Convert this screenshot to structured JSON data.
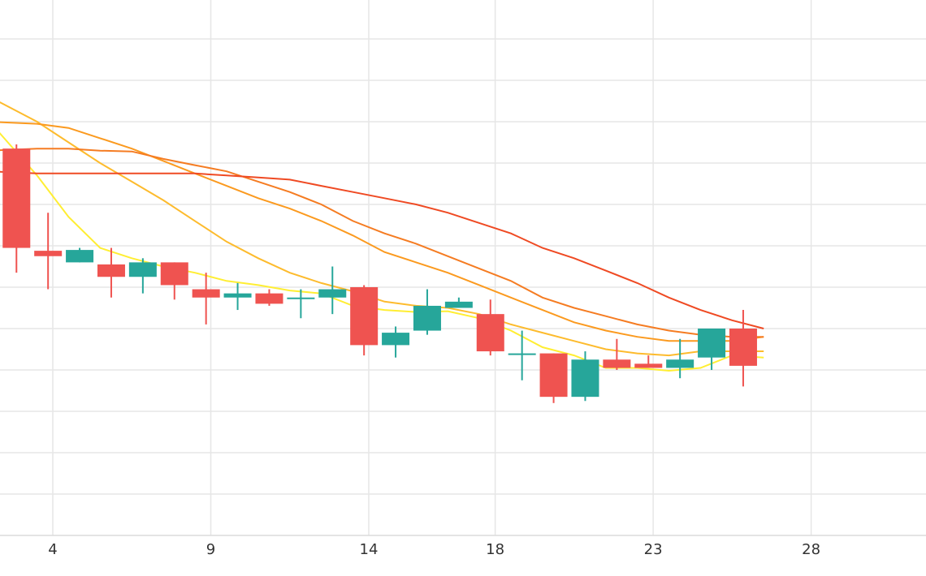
{
  "chart_data": {
    "type": "candlestick",
    "title": "",
    "xlabel": "",
    "ylabel": "",
    "x_ticks": [
      4,
      9,
      14,
      18,
      23,
      28
    ],
    "y_lim": [
      0,
      13
    ],
    "grid": true,
    "colors": {
      "up": "#26a69a",
      "down": "#ef5350"
    },
    "candles": [
      {
        "day": 2.85,
        "open": 9.35,
        "high": 9.45,
        "low": 6.35,
        "close": 6.95
      },
      {
        "day": 3.85,
        "open": 6.88,
        "high": 7.8,
        "low": 5.95,
        "close": 6.75
      },
      {
        "day": 4.85,
        "open": 6.6,
        "high": 6.95,
        "low": 6.6,
        "close": 6.9
      },
      {
        "day": 5.85,
        "open": 6.55,
        "high": 6.95,
        "low": 5.75,
        "close": 6.25
      },
      {
        "day": 6.85,
        "open": 6.25,
        "high": 6.7,
        "low": 5.85,
        "close": 6.6
      },
      {
        "day": 7.85,
        "open": 6.6,
        "high": 6.6,
        "low": 5.7,
        "close": 6.05
      },
      {
        "day": 8.85,
        "open": 5.95,
        "high": 6.35,
        "low": 5.1,
        "close": 5.75
      },
      {
        "day": 9.85,
        "open": 5.75,
        "high": 6.1,
        "low": 5.45,
        "close": 5.85
      },
      {
        "day": 10.85,
        "open": 5.85,
        "high": 5.95,
        "low": 5.55,
        "close": 5.6
      },
      {
        "day": 11.85,
        "open": 5.75,
        "high": 5.95,
        "low": 5.25,
        "close": 5.75
      },
      {
        "day": 12.85,
        "open": 5.75,
        "high": 6.5,
        "low": 5.35,
        "close": 5.95
      },
      {
        "day": 13.85,
        "open": 6.0,
        "high": 6.05,
        "low": 4.35,
        "close": 4.6
      },
      {
        "day": 14.85,
        "open": 4.6,
        "high": 5.05,
        "low": 4.3,
        "close": 4.9
      },
      {
        "day": 15.85,
        "open": 4.95,
        "high": 5.95,
        "low": 4.85,
        "close": 5.55
      },
      {
        "day": 16.85,
        "open": 5.5,
        "high": 5.75,
        "low": 5.5,
        "close": 5.65
      },
      {
        "day": 17.85,
        "open": 5.35,
        "high": 5.7,
        "low": 4.35,
        "close": 4.45
      },
      {
        "day": 18.85,
        "open": 4.4,
        "high": 4.95,
        "low": 3.75,
        "close": 4.4
      },
      {
        "day": 19.85,
        "open": 4.4,
        "high": 4.4,
        "low": 3.2,
        "close": 3.35
      },
      {
        "day": 20.85,
        "open": 3.35,
        "high": 4.45,
        "low": 3.25,
        "close": 4.25
      },
      {
        "day": 21.85,
        "open": 4.25,
        "high": 4.75,
        "low": 4.0,
        "close": 4.05
      },
      {
        "day": 22.85,
        "open": 4.15,
        "high": 4.35,
        "low": 4.05,
        "close": 4.05
      },
      {
        "day": 23.85,
        "open": 4.05,
        "high": 4.75,
        "low": 3.8,
        "close": 4.25
      },
      {
        "day": 24.85,
        "open": 4.3,
        "high": 5.0,
        "low": 4.0,
        "close": 5.0
      },
      {
        "day": 25.85,
        "open": 5.0,
        "high": 5.45,
        "low": 3.6,
        "close": 4.1
      }
    ],
    "series": [
      {
        "color": "#ffee33",
        "points": [
          [
            2.0,
            10.0
          ],
          [
            3.5,
            8.7
          ],
          [
            4.5,
            7.7
          ],
          [
            5.5,
            6.95
          ],
          [
            6.5,
            6.7
          ],
          [
            7.5,
            6.5
          ],
          [
            8.5,
            6.35
          ],
          [
            9.5,
            6.15
          ],
          [
            10.5,
            6.05
          ],
          [
            11.5,
            5.92
          ],
          [
            12.5,
            5.85
          ],
          [
            13.5,
            5.55
          ],
          [
            14.5,
            5.45
          ],
          [
            15.5,
            5.4
          ],
          [
            16.5,
            5.42
          ],
          [
            17.5,
            5.25
          ],
          [
            18.5,
            4.95
          ],
          [
            19.5,
            4.55
          ],
          [
            20.5,
            4.35
          ],
          [
            21.5,
            4.05
          ],
          [
            22.5,
            4.05
          ],
          [
            23.5,
            3.98
          ],
          [
            24.5,
            4.05
          ],
          [
            25.5,
            4.35
          ],
          [
            26.5,
            4.3
          ]
        ]
      },
      {
        "color": "#fdbb2d",
        "points": [
          [
            2.0,
            10.6
          ],
          [
            3.5,
            10.0
          ],
          [
            4.5,
            9.5
          ],
          [
            5.5,
            9.0
          ],
          [
            6.5,
            8.55
          ],
          [
            7.5,
            8.1
          ],
          [
            8.5,
            7.6
          ],
          [
            9.5,
            7.1
          ],
          [
            10.5,
            6.7
          ],
          [
            11.5,
            6.35
          ],
          [
            12.5,
            6.1
          ],
          [
            13.5,
            5.9
          ],
          [
            14.5,
            5.65
          ],
          [
            15.5,
            5.55
          ],
          [
            16.5,
            5.5
          ],
          [
            17.5,
            5.35
          ],
          [
            18.5,
            5.1
          ],
          [
            19.5,
            4.9
          ],
          [
            20.5,
            4.7
          ],
          [
            21.5,
            4.5
          ],
          [
            22.5,
            4.4
          ],
          [
            23.5,
            4.35
          ],
          [
            24.5,
            4.45
          ],
          [
            25.5,
            4.45
          ],
          [
            26.5,
            4.45
          ]
        ]
      },
      {
        "color": "#fb9a1f",
        "points": [
          [
            2.0,
            10.0
          ],
          [
            3.5,
            9.95
          ],
          [
            4.5,
            9.85
          ],
          [
            5.5,
            9.6
          ],
          [
            6.5,
            9.35
          ],
          [
            7.5,
            9.05
          ],
          [
            8.5,
            8.75
          ],
          [
            9.5,
            8.45
          ],
          [
            10.5,
            8.15
          ],
          [
            11.5,
            7.9
          ],
          [
            12.5,
            7.6
          ],
          [
            13.5,
            7.25
          ],
          [
            14.5,
            6.85
          ],
          [
            15.5,
            6.6
          ],
          [
            16.5,
            6.35
          ],
          [
            17.5,
            6.05
          ],
          [
            18.5,
            5.75
          ],
          [
            19.5,
            5.45
          ],
          [
            20.5,
            5.15
          ],
          [
            21.5,
            4.95
          ],
          [
            22.5,
            4.8
          ],
          [
            23.5,
            4.7
          ],
          [
            24.5,
            4.7
          ],
          [
            25.5,
            4.7
          ],
          [
            26.5,
            4.8
          ]
        ]
      },
      {
        "color": "#f57c22",
        "points": [
          [
            2.0,
            9.3
          ],
          [
            3.5,
            9.35
          ],
          [
            4.5,
            9.35
          ],
          [
            5.5,
            9.3
          ],
          [
            6.5,
            9.28
          ],
          [
            7.5,
            9.1
          ],
          [
            8.5,
            8.95
          ],
          [
            9.5,
            8.8
          ],
          [
            10.5,
            8.55
          ],
          [
            11.5,
            8.3
          ],
          [
            12.5,
            8.0
          ],
          [
            13.5,
            7.6
          ],
          [
            14.5,
            7.3
          ],
          [
            15.5,
            7.05
          ],
          [
            16.5,
            6.75
          ],
          [
            17.5,
            6.45
          ],
          [
            18.5,
            6.15
          ],
          [
            19.5,
            5.75
          ],
          [
            20.5,
            5.5
          ],
          [
            21.5,
            5.3
          ],
          [
            22.5,
            5.1
          ],
          [
            23.5,
            4.95
          ],
          [
            24.5,
            4.85
          ],
          [
            25.5,
            4.8
          ],
          [
            26.5,
            4.8
          ]
        ]
      },
      {
        "color": "#ef4a23",
        "points": [
          [
            2.0,
            8.8
          ],
          [
            3.5,
            8.75
          ],
          [
            4.5,
            8.75
          ],
          [
            5.5,
            8.75
          ],
          [
            6.5,
            8.75
          ],
          [
            7.5,
            8.75
          ],
          [
            8.5,
            8.75
          ],
          [
            9.5,
            8.7
          ],
          [
            10.5,
            8.65
          ],
          [
            11.5,
            8.6
          ],
          [
            12.5,
            8.45
          ],
          [
            13.5,
            8.3
          ],
          [
            14.5,
            8.15
          ],
          [
            15.5,
            8.0
          ],
          [
            16.5,
            7.8
          ],
          [
            17.5,
            7.55
          ],
          [
            18.5,
            7.3
          ],
          [
            19.5,
            6.95
          ],
          [
            20.5,
            6.7
          ],
          [
            21.5,
            6.4
          ],
          [
            22.5,
            6.1
          ],
          [
            23.5,
            5.75
          ],
          [
            24.5,
            5.45
          ],
          [
            25.5,
            5.2
          ],
          [
            26.5,
            5.0
          ]
        ]
      }
    ]
  }
}
